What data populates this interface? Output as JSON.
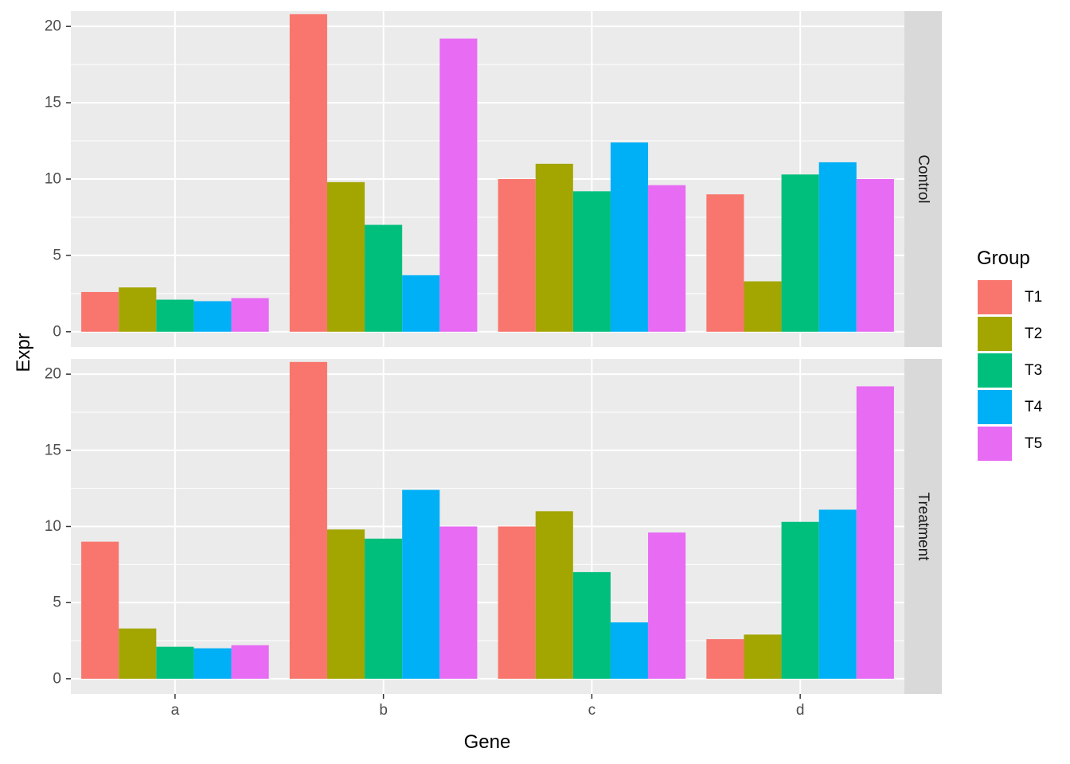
{
  "chart_data": {
    "type": "bar",
    "xlabel": "Gene",
    "ylabel": "Expr",
    "categories": [
      "a",
      "b",
      "c",
      "d"
    ],
    "ylim": [
      -1,
      21
    ],
    "yticks": [
      "0",
      "5",
      "10",
      "15",
      "20"
    ],
    "legend": {
      "title": "Group",
      "placement": "right"
    },
    "grid": true,
    "series_colors": {
      "T1": "#F8766D",
      "T2": "#A3A500",
      "T3": "#00BF7D",
      "T4": "#00B0F6",
      "T5": "#E76BF3"
    },
    "panels": [
      {
        "strip": "Control",
        "series": [
          {
            "name": "T1",
            "values": [
              2.6,
              20.8,
              10.0,
              9.0
            ]
          },
          {
            "name": "T2",
            "values": [
              2.9,
              9.8,
              11.0,
              3.3
            ]
          },
          {
            "name": "T3",
            "values": [
              2.1,
              7.0,
              9.2,
              10.3
            ]
          },
          {
            "name": "T4",
            "values": [
              2.0,
              3.7,
              12.4,
              11.1
            ]
          },
          {
            "name": "T5",
            "values": [
              2.2,
              19.2,
              9.6,
              10.0
            ]
          }
        ]
      },
      {
        "strip": "Treatment",
        "series": [
          {
            "name": "T1",
            "values": [
              9.0,
              20.8,
              10.0,
              2.6
            ]
          },
          {
            "name": "T2",
            "values": [
              3.3,
              9.8,
              11.0,
              2.9
            ]
          },
          {
            "name": "T3",
            "values": [
              2.1,
              9.2,
              7.0,
              10.3
            ]
          },
          {
            "name": "T4",
            "values": [
              2.0,
              12.4,
              3.7,
              11.1
            ]
          },
          {
            "name": "T5",
            "values": [
              2.2,
              10.0,
              9.6,
              19.2
            ]
          }
        ]
      }
    ]
  }
}
